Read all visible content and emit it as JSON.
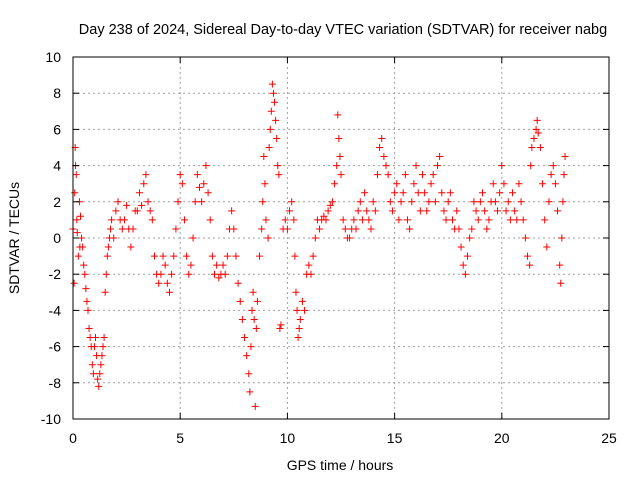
{
  "chart_data": {
    "type": "scatter",
    "title": "Day 238 of 2024, Sidereal Day-to-day VTEC variation (SDTVAR) for receiver nabg",
    "xlabel": "GPS time / hours",
    "ylabel": "SDTVAR / TECUs",
    "xlim": [
      0,
      25
    ],
    "ylim": [
      -10,
      10
    ],
    "xticks": [
      "0",
      "5",
      "10",
      "15",
      "20",
      "25"
    ],
    "yticks": [
      "-10",
      "-8",
      "-6",
      "-4",
      "-2",
      "0",
      "2",
      "4",
      "6",
      "8",
      "10"
    ],
    "grid": true,
    "marker": "plus",
    "color": "#ff0000",
    "series": [
      {
        "name": "SDTVAR",
        "points": [
          [
            0.0,
            0.5
          ],
          [
            0.05,
            -2.5
          ],
          [
            0.08,
            2.5
          ],
          [
            0.1,
            5.0
          ],
          [
            0.12,
            4.0
          ],
          [
            0.15,
            3.5
          ],
          [
            0.18,
            1.0
          ],
          [
            0.2,
            0.3
          ],
          [
            0.25,
            -1.0
          ],
          [
            0.3,
            2.0
          ],
          [
            0.32,
            -0.5
          ],
          [
            0.35,
            1.2
          ],
          [
            0.4,
            0.0
          ],
          [
            0.45,
            -0.5
          ],
          [
            0.5,
            -1.5
          ],
          [
            0.55,
            -2.0
          ],
          [
            0.6,
            -2.8
          ],
          [
            0.65,
            -3.5
          ],
          [
            0.7,
            -4.0
          ],
          [
            0.75,
            -5.0
          ],
          [
            0.8,
            -5.5
          ],
          [
            0.85,
            -6.0
          ],
          [
            0.9,
            -7.0
          ],
          [
            0.95,
            -7.5
          ],
          [
            1.0,
            -6.0
          ],
          [
            1.05,
            -5.5
          ],
          [
            1.1,
            -6.5
          ],
          [
            1.15,
            -7.8
          ],
          [
            1.2,
            -8.2
          ],
          [
            1.25,
            -7.5
          ],
          [
            1.3,
            -7.0
          ],
          [
            1.35,
            -6.5
          ],
          [
            1.4,
            -6.0
          ],
          [
            1.45,
            -5.5
          ],
          [
            1.5,
            -3.0
          ],
          [
            1.55,
            -2.0
          ],
          [
            1.6,
            -1.0
          ],
          [
            1.65,
            -0.5
          ],
          [
            1.7,
            0.0
          ],
          [
            1.75,
            0.5
          ],
          [
            1.8,
            1.0
          ],
          [
            1.9,
            0.0
          ],
          [
            2.0,
            1.5
          ],
          [
            2.1,
            2.0
          ],
          [
            2.2,
            1.0
          ],
          [
            2.3,
            0.5
          ],
          [
            2.4,
            1.0
          ],
          [
            2.5,
            1.8
          ],
          [
            2.6,
            0.5
          ],
          [
            2.7,
            -0.5
          ],
          [
            2.8,
            0.5
          ],
          [
            2.9,
            1.5
          ],
          [
            3.0,
            1.5
          ],
          [
            3.1,
            2.5
          ],
          [
            3.2,
            1.8
          ],
          [
            3.3,
            3.0
          ],
          [
            3.4,
            3.5
          ],
          [
            3.5,
            2.0
          ],
          [
            3.6,
            1.5
          ],
          [
            3.7,
            1.0
          ],
          [
            3.8,
            -1.0
          ],
          [
            3.9,
            -2.0
          ],
          [
            4.0,
            -2.5
          ],
          [
            4.1,
            -2.0
          ],
          [
            4.2,
            -1.0
          ],
          [
            4.3,
            -1.5
          ],
          [
            4.4,
            -2.5
          ],
          [
            4.5,
            -3.0
          ],
          [
            4.6,
            -2.0
          ],
          [
            4.7,
            -1.0
          ],
          [
            4.8,
            0.5
          ],
          [
            4.9,
            2.0
          ],
          [
            5.0,
            3.5
          ],
          [
            5.1,
            3.0
          ],
          [
            5.2,
            1.0
          ],
          [
            5.3,
            -1.0
          ],
          [
            5.4,
            -2.0
          ],
          [
            5.5,
            -1.5
          ],
          [
            5.6,
            0.0
          ],
          [
            5.7,
            2.0
          ],
          [
            5.8,
            3.5
          ],
          [
            5.9,
            2.8
          ],
          [
            6.0,
            2.0
          ],
          [
            6.1,
            3.0
          ],
          [
            6.2,
            4.0
          ],
          [
            6.3,
            2.5
          ],
          [
            6.4,
            1.0
          ],
          [
            6.5,
            -1.0
          ],
          [
            6.6,
            -2.0
          ],
          [
            6.7,
            -1.5
          ],
          [
            6.8,
            -2.2
          ],
          [
            6.9,
            -2.0
          ],
          [
            7.0,
            -1.5
          ],
          [
            7.1,
            -2.0
          ],
          [
            7.2,
            -1.0
          ],
          [
            7.3,
            0.5
          ],
          [
            7.4,
            1.5
          ],
          [
            7.5,
            0.5
          ],
          [
            7.6,
            -1.0
          ],
          [
            7.7,
            -2.5
          ],
          [
            7.8,
            -3.5
          ],
          [
            7.9,
            -4.5
          ],
          [
            8.0,
            -5.5
          ],
          [
            8.1,
            -6.5
          ],
          [
            8.2,
            -7.5
          ],
          [
            8.25,
            -8.5
          ],
          [
            8.3,
            -6.0
          ],
          [
            8.35,
            -4.0
          ],
          [
            8.4,
            -3.0
          ],
          [
            8.45,
            -4.5
          ],
          [
            8.5,
            -9.3
          ],
          [
            8.55,
            -5.0
          ],
          [
            8.6,
            -3.5
          ],
          [
            8.7,
            -1.0
          ],
          [
            8.8,
            0.5
          ],
          [
            8.85,
            2.0
          ],
          [
            8.9,
            4.5
          ],
          [
            8.95,
            3.0
          ],
          [
            9.0,
            1.0
          ],
          [
            9.1,
            0.0
          ],
          [
            9.15,
            5.0
          ],
          [
            9.2,
            6.0
          ],
          [
            9.25,
            7.0
          ],
          [
            9.3,
            8.5
          ],
          [
            9.35,
            8.0
          ],
          [
            9.4,
            7.5
          ],
          [
            9.45,
            6.5
          ],
          [
            9.5,
            5.5
          ],
          [
            9.55,
            4.0
          ],
          [
            9.6,
            3.5
          ],
          [
            9.65,
            -5.0
          ],
          [
            9.7,
            -4.8
          ],
          [
            9.8,
            0.5
          ],
          [
            9.9,
            1.0
          ],
          [
            10.0,
            0.5
          ],
          [
            10.1,
            1.5
          ],
          [
            10.2,
            2.0
          ],
          [
            10.3,
            1.0
          ],
          [
            10.35,
            -1.0
          ],
          [
            10.4,
            -3.0
          ],
          [
            10.45,
            -4.0
          ],
          [
            10.5,
            -5.5
          ],
          [
            10.55,
            -5.0
          ],
          [
            10.6,
            -4.5
          ],
          [
            10.7,
            -3.5
          ],
          [
            10.8,
            -4.0
          ],
          [
            10.9,
            -2.0
          ],
          [
            11.0,
            -1.5
          ],
          [
            11.1,
            -2.0
          ],
          [
            11.2,
            -1.0
          ],
          [
            11.3,
            0.0
          ],
          [
            11.4,
            1.0
          ],
          [
            11.5,
            0.5
          ],
          [
            11.6,
            1.0
          ],
          [
            11.7,
            1.2
          ],
          [
            11.8,
            1.0
          ],
          [
            11.9,
            1.5
          ],
          [
            12.0,
            1.8
          ],
          [
            12.1,
            2.0
          ],
          [
            12.2,
            3.0
          ],
          [
            12.3,
            4.0
          ],
          [
            12.35,
            6.8
          ],
          [
            12.4,
            5.5
          ],
          [
            12.45,
            4.5
          ],
          [
            12.5,
            3.5
          ],
          [
            12.6,
            1.0
          ],
          [
            12.7,
            0.5
          ],
          [
            12.8,
            0.0
          ],
          [
            12.9,
            0.0
          ],
          [
            13.0,
            0.5
          ],
          [
            13.1,
            1.0
          ],
          [
            13.2,
            0.5
          ],
          [
            13.3,
            1.5
          ],
          [
            13.4,
            2.0
          ],
          [
            13.5,
            1.0
          ],
          [
            13.6,
            2.5
          ],
          [
            13.7,
            1.5
          ],
          [
            13.8,
            1.0
          ],
          [
            13.9,
            0.5
          ],
          [
            14.0,
            2.0
          ],
          [
            14.1,
            1.5
          ],
          [
            14.2,
            3.5
          ],
          [
            14.3,
            5.0
          ],
          [
            14.4,
            5.5
          ],
          [
            14.5,
            4.5
          ],
          [
            14.6,
            4.0
          ],
          [
            14.7,
            3.5
          ],
          [
            14.8,
            2.0
          ],
          [
            14.9,
            1.5
          ],
          [
            15.0,
            2.5
          ],
          [
            15.1,
            3.0
          ],
          [
            15.2,
            1.0
          ],
          [
            15.3,
            2.0
          ],
          [
            15.4,
            2.5
          ],
          [
            15.5,
            3.5
          ],
          [
            15.6,
            1.0
          ],
          [
            15.7,
            0.5
          ],
          [
            15.8,
            2.0
          ],
          [
            15.9,
            3.0
          ],
          [
            16.0,
            4.0
          ],
          [
            16.1,
            2.5
          ],
          [
            16.2,
            1.5
          ],
          [
            16.3,
            3.5
          ],
          [
            16.4,
            2.5
          ],
          [
            16.5,
            1.5
          ],
          [
            16.6,
            2.0
          ],
          [
            16.7,
            3.0
          ],
          [
            16.8,
            3.5
          ],
          [
            16.9,
            2.0
          ],
          [
            17.0,
            4.0
          ],
          [
            17.1,
            4.5
          ],
          [
            17.2,
            2.5
          ],
          [
            17.3,
            1.5
          ],
          [
            17.4,
            1.0
          ],
          [
            17.5,
            2.0
          ],
          [
            17.6,
            2.5
          ],
          [
            17.7,
            1.0
          ],
          [
            17.8,
            0.5
          ],
          [
            17.9,
            1.5
          ],
          [
            18.0,
            0.5
          ],
          [
            18.1,
            -0.5
          ],
          [
            18.2,
            -1.5
          ],
          [
            18.3,
            -2.0
          ],
          [
            18.4,
            -1.0
          ],
          [
            18.5,
            0.0
          ],
          [
            18.6,
            0.5
          ],
          [
            18.7,
            2.0
          ],
          [
            18.8,
            1.5
          ],
          [
            18.9,
            1.0
          ],
          [
            19.0,
            2.0
          ],
          [
            19.1,
            2.5
          ],
          [
            19.2,
            1.5
          ],
          [
            19.3,
            0.5
          ],
          [
            19.4,
            1.0
          ],
          [
            19.5,
            2.0
          ],
          [
            19.6,
            3.0
          ],
          [
            19.7,
            2.0
          ],
          [
            19.8,
            1.5
          ],
          [
            19.9,
            2.5
          ],
          [
            20.0,
            4.0
          ],
          [
            20.1,
            3.0
          ],
          [
            20.2,
            1.5
          ],
          [
            20.3,
            2.0
          ],
          [
            20.4,
            1.0
          ],
          [
            20.5,
            2.5
          ],
          [
            20.6,
            1.5
          ],
          [
            20.7,
            1.0
          ],
          [
            20.8,
            3.0
          ],
          [
            20.9,
            2.0
          ],
          [
            21.0,
            1.0
          ],
          [
            21.1,
            0.0
          ],
          [
            21.2,
            -1.0
          ],
          [
            21.3,
            -1.5
          ],
          [
            21.35,
            4.0
          ],
          [
            21.4,
            5.0
          ],
          [
            21.5,
            5.5
          ],
          [
            21.6,
            6.0
          ],
          [
            21.65,
            6.5
          ],
          [
            21.7,
            5.8
          ],
          [
            21.8,
            5.0
          ],
          [
            21.9,
            3.0
          ],
          [
            22.0,
            1.0
          ],
          [
            22.1,
            -0.5
          ],
          [
            22.2,
            2.0
          ],
          [
            22.3,
            3.5
          ],
          [
            22.4,
            4.0
          ],
          [
            22.5,
            3.0
          ],
          [
            22.6,
            1.5
          ],
          [
            22.7,
            -1.5
          ],
          [
            22.75,
            -2.5
          ],
          [
            22.8,
            0.0
          ],
          [
            22.85,
            2.0
          ],
          [
            22.9,
            3.5
          ],
          [
            22.95,
            4.5
          ]
        ]
      }
    ]
  }
}
